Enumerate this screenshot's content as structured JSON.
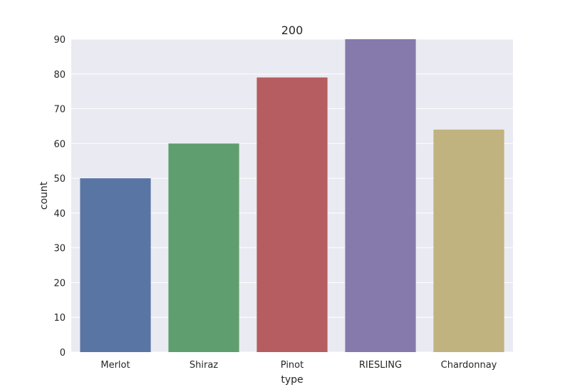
{
  "chart_data": {
    "type": "bar",
    "title": "200",
    "xlabel": "type",
    "ylabel": "count",
    "categories": [
      "Merlot",
      "Shiraz",
      "Pinot",
      "RIESLING",
      "Chardonnay"
    ],
    "values": [
      50,
      60,
      79,
      90,
      64
    ],
    "ylim": [
      0,
      90
    ],
    "yticks": [
      0,
      10,
      20,
      30,
      40,
      50,
      60,
      70,
      80,
      90
    ],
    "grid": true,
    "legend": "none",
    "colors": [
      "#5975a4",
      "#5f9e6e",
      "#b55d60",
      "#857aab",
      "#c1b37f"
    ],
    "background": "#eaeaf2"
  }
}
